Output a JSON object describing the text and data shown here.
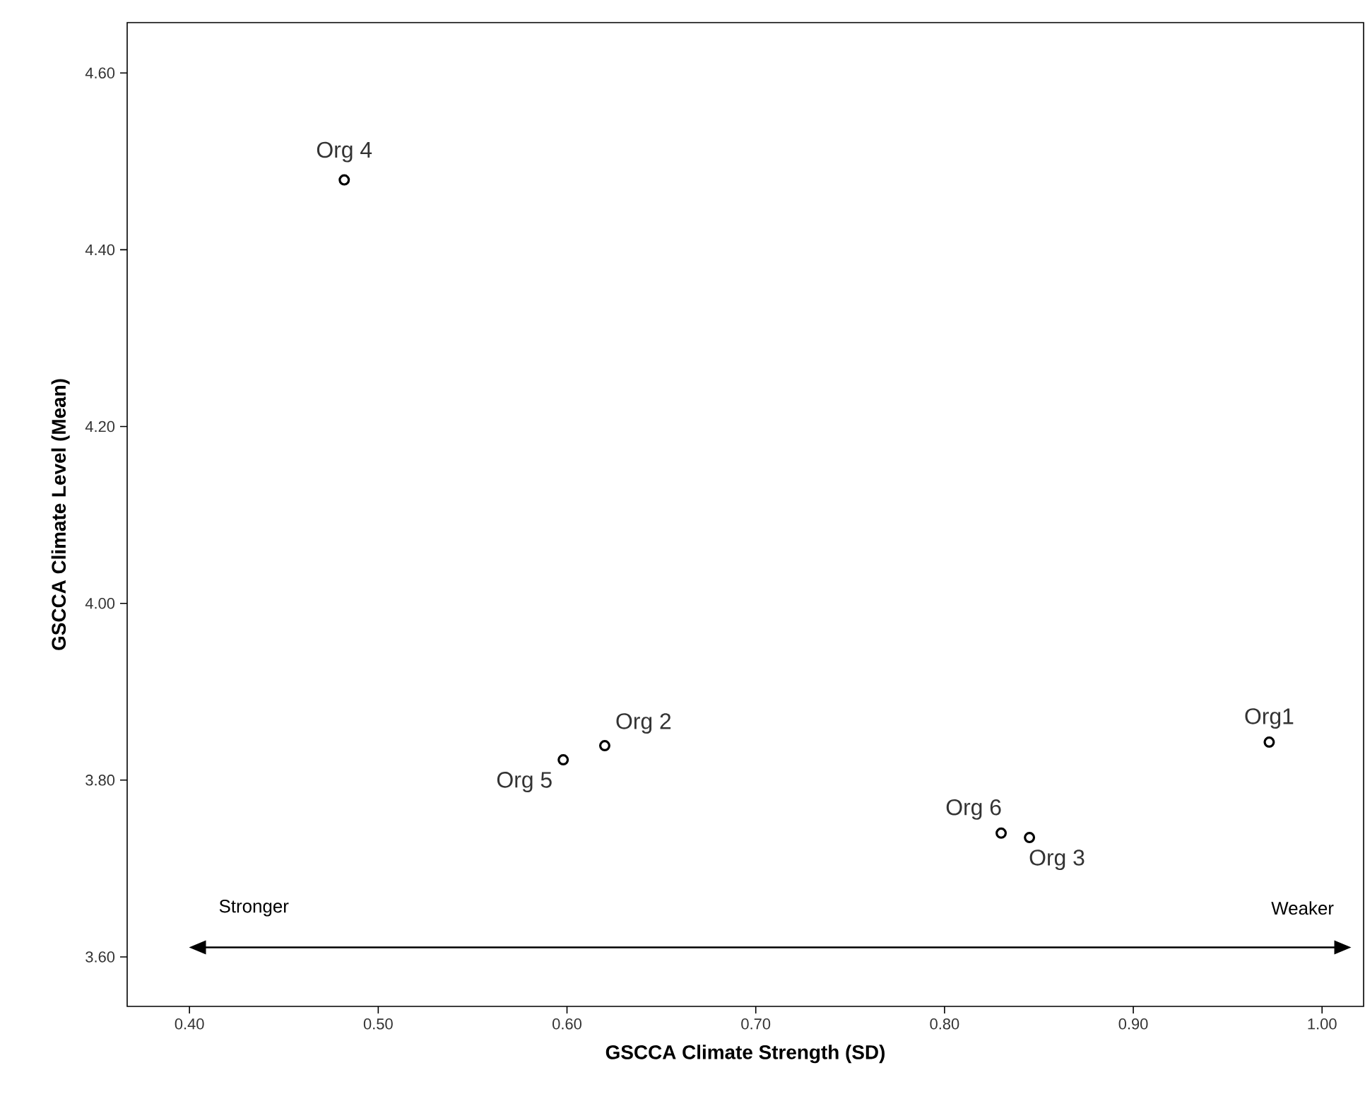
{
  "chart_data": {
    "type": "scatter",
    "xlabel": "GSCCA Climate Strength (SD)",
    "ylabel": "GSCCA Climate Level (Mean)",
    "x": [
      0.972,
      0.62,
      0.845,
      0.482,
      0.598,
      0.83
    ],
    "values": [
      3.843,
      3.839,
      3.735,
      4.479,
      3.823,
      3.74
    ],
    "color": "#000000",
    "marker": "circle",
    "grid": false,
    "xlim": [
      0.367,
      1.022
    ],
    "ylim": [
      3.544,
      4.657
    ],
    "xticks": [
      {
        "value": 0.4,
        "label": "0.40"
      },
      {
        "value": 0.5,
        "label": "0.50"
      },
      {
        "value": 0.6,
        "label": "0.60"
      },
      {
        "value": 0.7,
        "label": "0.70"
      },
      {
        "value": 0.8,
        "label": "0.80"
      },
      {
        "value": 0.9,
        "label": "0.90"
      },
      {
        "value": 1.0,
        "label": "1.00"
      }
    ],
    "yticks": [
      {
        "value": 3.6,
        "label": "3.60"
      },
      {
        "value": 3.8,
        "label": "3.80"
      },
      {
        "value": 4.0,
        "label": "4.00"
      },
      {
        "value": 4.2,
        "label": "4.20"
      },
      {
        "value": 4.4,
        "label": "4.40"
      },
      {
        "value": 4.6,
        "label": "4.60"
      }
    ],
    "annotations": [
      {
        "text": "Org1",
        "x": 0.972,
        "y": 3.843
      },
      {
        "text": "Org 2",
        "x": 0.62,
        "y": 3.839
      },
      {
        "text": "Org 3",
        "x": 0.845,
        "y": 3.735
      },
      {
        "text": "Org 4",
        "x": 0.482,
        "y": 4.479
      },
      {
        "text": "Org 5",
        "x": 0.598,
        "y": 3.823
      },
      {
        "text": "Org 6",
        "x": 0.83,
        "y": 3.74
      },
      "Stronger",
      "Weaker"
    ]
  }
}
